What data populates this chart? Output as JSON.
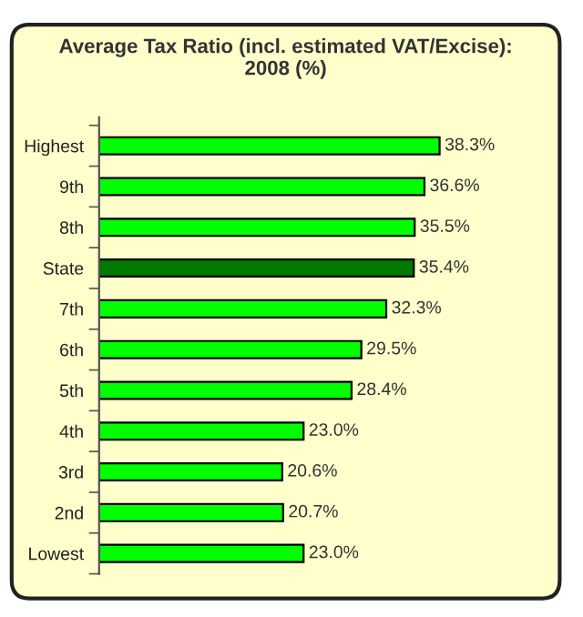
{
  "chart_data": {
    "type": "bar",
    "orientation": "horizontal",
    "title": "Average Tax Ratio (incl. estimated VAT/Excise):\n2008 (%)",
    "categories": [
      "Highest",
      "9th",
      "8th",
      "State",
      "7th",
      "6th",
      "5th",
      "4th",
      "3rd",
      "2nd",
      "Lowest"
    ],
    "values": [
      38.3,
      36.6,
      35.5,
      35.4,
      32.3,
      29.5,
      28.4,
      23.0,
      20.6,
      20.7,
      23.0
    ],
    "value_labels": [
      "38.3%",
      "36.6%",
      "35.5%",
      "35.4%",
      "32.3%",
      "29.5%",
      "28.4%",
      "23.0%",
      "20.6%",
      "20.7%",
      "23.0%"
    ],
    "colors": [
      "#00ff00",
      "#00ff00",
      "#00ff00",
      "#007a00",
      "#00ff00",
      "#00ff00",
      "#00ff00",
      "#00ff00",
      "#00ff00",
      "#00ff00",
      "#00ff00"
    ],
    "grid": false,
    "legend": false
  }
}
